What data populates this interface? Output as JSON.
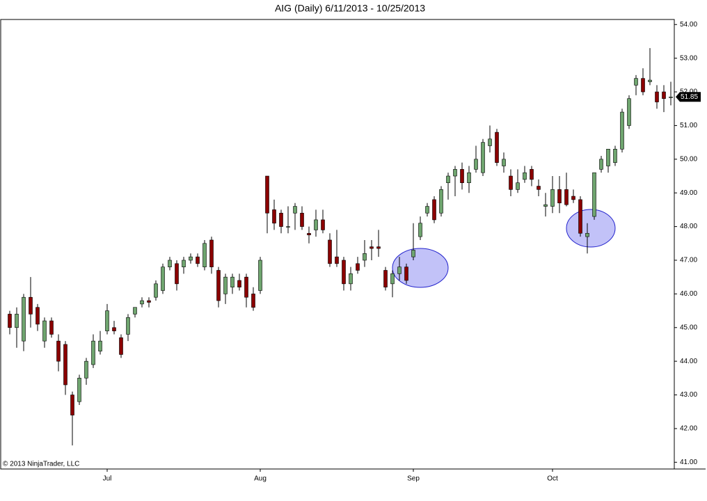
{
  "chart_data": {
    "type": "candlestick",
    "title": "AIG (Daily)  6/11/2013 - 10/25/2013",
    "copyright": "© 2013 NinjaTrader, LLC",
    "last_price": 51.85,
    "up_color": "#6fa56f",
    "down_color": "#8b0000",
    "categories": [
      null,
      null,
      null,
      null,
      null,
      null,
      null,
      null,
      null,
      null,
      null,
      null,
      null,
      null,
      "Jul",
      null,
      null,
      null,
      null,
      null,
      null,
      null,
      null,
      null,
      null,
      null,
      null,
      null,
      null,
      null,
      null,
      null,
      null,
      null,
      null,
      null,
      "Aug",
      null,
      null,
      null,
      null,
      null,
      null,
      null,
      null,
      null,
      null,
      null,
      null,
      null,
      null,
      null,
      null,
      null,
      null,
      null,
      null,
      null,
      "Sep",
      null,
      null,
      null,
      null,
      null,
      null,
      null,
      null,
      null,
      null,
      null,
      null,
      null,
      null,
      null,
      null,
      null,
      null,
      null,
      "Oct",
      null,
      null,
      null,
      null,
      null,
      null,
      null,
      null,
      null,
      null,
      null,
      null,
      null,
      null,
      null,
      null,
      null
    ],
    "open": [
      45.4,
      45.0,
      44.6,
      45.9,
      45.6,
      44.6,
      45.2,
      44.6,
      44.5,
      43.0,
      42.8,
      43.5,
      43.9,
      44.3,
      44.9,
      45.0,
      44.7,
      44.8,
      45.4,
      45.7,
      45.8,
      45.9,
      46.1,
      46.8,
      46.9,
      46.8,
      47.0,
      47.1,
      46.8,
      47.6,
      46.7,
      46.0,
      46.2,
      46.4,
      46.5,
      46.0,
      46.1,
      49.5,
      48.5,
      48.4,
      48.0,
      48.4,
      48.4,
      47.8,
      47.9,
      48.2,
      47.6,
      47.1,
      47.0,
      46.3,
      46.9,
      47.0,
      47.4,
      47.4,
      46.7,
      46.3,
      46.6,
      46.8,
      47.1,
      47.7,
      48.4,
      48.8,
      48.4,
      49.3,
      49.5,
      49.7,
      49.3,
      49.7,
      49.6,
      50.4,
      50.8,
      49.8,
      49.5,
      49.1,
      49.4,
      49.7,
      49.2,
      48.6,
      48.6,
      49.1,
      49.1,
      48.9,
      48.8,
      47.7,
      48.3,
      49.7,
      49.8,
      49.9,
      50.3,
      51.0,
      52.2,
      52.4,
      52.3,
      52.0,
      52.0,
      51.85
    ],
    "high": [
      45.5,
      45.6,
      46.0,
      46.5,
      45.7,
      45.3,
      45.3,
      44.8,
      44.6,
      43.1,
      43.6,
      44.1,
      44.8,
      44.9,
      45.7,
      45.2,
      44.8,
      45.4,
      45.6,
      45.9,
      45.9,
      46.4,
      46.9,
      47.1,
      47.0,
      47.1,
      47.2,
      47.2,
      47.6,
      47.7,
      46.8,
      46.6,
      46.6,
      46.6,
      46.6,
      46.2,
      47.1,
      49.5,
      48.8,
      48.5,
      48.6,
      48.7,
      48.6,
      48.0,
      48.5,
      48.5,
      47.8,
      47.9,
      47.1,
      46.8,
      47.1,
      47.6,
      47.6,
      47.9,
      46.8,
      46.7,
      47.1,
      46.9,
      48.1,
      48.3,
      48.7,
      48.9,
      49.2,
      49.6,
      49.8,
      49.9,
      49.8,
      50.4,
      50.6,
      51.0,
      50.9,
      50.2,
      49.7,
      49.7,
      49.8,
      49.8,
      49.4,
      49.0,
      49.5,
      49.5,
      49.6,
      49.1,
      48.9,
      48.1,
      49.6,
      50.1,
      50.3,
      50.4,
      51.5,
      51.9,
      52.5,
      52.7,
      53.3,
      52.2,
      52.2,
      52.3
    ],
    "low": [
      44.8,
      44.4,
      44.3,
      45.0,
      44.9,
      44.4,
      44.7,
      43.7,
      43.0,
      41.5,
      42.7,
      43.3,
      43.8,
      44.2,
      44.8,
      44.8,
      44.1,
      44.6,
      45.3,
      45.6,
      45.6,
      45.8,
      46.0,
      46.7,
      46.1,
      46.6,
      46.9,
      46.8,
      46.7,
      46.6,
      45.6,
      45.7,
      46.0,
      46.1,
      45.6,
      45.5,
      46.0,
      47.8,
      47.9,
      47.8,
      47.8,
      47.9,
      47.9,
      47.5,
      47.7,
      47.8,
      46.8,
      46.8,
      46.1,
      46.1,
      46.6,
      46.8,
      47.0,
      47.1,
      46.1,
      45.9,
      46.4,
      46.3,
      47.0,
      47.6,
      48.3,
      48.1,
      48.3,
      48.8,
      48.9,
      49.1,
      49.0,
      49.6,
      49.5,
      50.2,
      49.8,
      49.6,
      48.9,
      49.0,
      49.3,
      49.2,
      48.9,
      48.3,
      48.4,
      48.4,
      48.6,
      48.7,
      47.7,
      47.2,
      48.2,
      49.6,
      49.6,
      49.8,
      50.2,
      50.9,
      51.9,
      51.9,
      52.2,
      51.5,
      51.4,
      51.6
    ],
    "close": [
      45.0,
      45.4,
      45.9,
      45.4,
      45.1,
      45.2,
      44.8,
      44.0,
      43.3,
      42.4,
      43.5,
      44.0,
      44.6,
      44.6,
      45.5,
      44.9,
      44.2,
      45.3,
      45.6,
      45.8,
      45.75,
      46.3,
      46.8,
      47.0,
      46.3,
      47.0,
      47.1,
      46.9,
      47.5,
      46.8,
      45.8,
      46.5,
      46.5,
      46.2,
      45.9,
      45.6,
      47.0,
      48.4,
      48.1,
      48.0,
      48.0,
      48.6,
      48.0,
      47.75,
      48.2,
      47.9,
      46.9,
      46.9,
      46.3,
      46.6,
      46.7,
      47.2,
      47.35,
      47.35,
      46.2,
      46.6,
      46.8,
      46.4,
      47.3,
      48.1,
      48.6,
      48.2,
      49.1,
      49.5,
      49.7,
      49.3,
      49.6,
      50.0,
      50.5,
      50.6,
      49.9,
      50.0,
      49.1,
      49.3,
      49.6,
      49.4,
      49.1,
      48.65,
      49.1,
      48.7,
      48.65,
      48.8,
      47.8,
      47.8,
      49.6,
      50.0,
      50.3,
      50.3,
      51.4,
      51.8,
      52.4,
      52.0,
      52.35,
      51.7,
      51.8,
      51.85
    ],
    "ylim": [
      40.8,
      54.15
    ],
    "yticks": [
      {
        "value": 41,
        "label": "41.00"
      },
      {
        "value": 42,
        "label": "42.00"
      },
      {
        "value": 43,
        "label": "43.00"
      },
      {
        "value": 44,
        "label": "44.00"
      },
      {
        "value": 45,
        "label": "45.00"
      },
      {
        "value": 46,
        "label": "46.00"
      },
      {
        "value": 47,
        "label": "47.00"
      },
      {
        "value": 48,
        "label": "48.00"
      },
      {
        "value": 49,
        "label": "49.00"
      },
      {
        "value": 50,
        "label": "50.00"
      },
      {
        "value": 51,
        "label": "51.00"
      },
      {
        "value": 52,
        "label": "52.00"
      },
      {
        "value": 53,
        "label": "53.00"
      },
      {
        "value": 54,
        "label": "54.00"
      }
    ]
  }
}
